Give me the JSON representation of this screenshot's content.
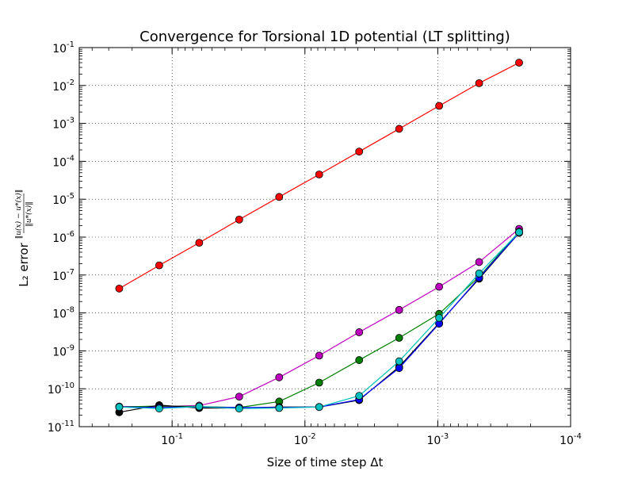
{
  "chart_data": {
    "type": "line",
    "title": "Convergence for Torsional 1D potential (LT splitting)",
    "xlabel": "Size of time step Δt",
    "ylabel_main": "L₂ error",
    "ylabel_numerator": "‖u(x) − u*(x)‖",
    "ylabel_denominator": "‖u*(x)‖",
    "x_scale": "log",
    "y_scale": "log",
    "x_reversed": true,
    "xlim": [
      0.5,
      0.0001
    ],
    "ylim": [
      1e-11,
      0.1
    ],
    "grid": true,
    "x_ticks": [
      {
        "base": "10",
        "exp": "-1"
      },
      {
        "base": "10",
        "exp": "-2"
      },
      {
        "base": "10",
        "exp": "-3"
      },
      {
        "base": "10",
        "exp": "-4"
      }
    ],
    "y_ticks": [
      {
        "base": "10",
        "exp": "-11"
      },
      {
        "base": "10",
        "exp": "-10"
      },
      {
        "base": "10",
        "exp": "-9"
      },
      {
        "base": "10",
        "exp": "-8"
      },
      {
        "base": "10",
        "exp": "-7"
      },
      {
        "base": "10",
        "exp": "-6"
      },
      {
        "base": "10",
        "exp": "-5"
      },
      {
        "base": "10",
        "exp": "-4"
      },
      {
        "base": "10",
        "exp": "-3"
      },
      {
        "base": "10",
        "exp": "-2"
      },
      {
        "base": "10",
        "exp": "-1"
      }
    ],
    "x": [
      0.25,
      0.125,
      0.0625,
      0.03125,
      0.015625,
      0.0078125,
      0.00390625,
      0.001953125,
      0.0009765625,
      0.00048828125,
      0.000244140625
    ],
    "series": [
      {
        "color": "#ff0000",
        "values": [
          4.4e-08,
          1.8e-07,
          7.1e-07,
          2.9e-06,
          1.15e-05,
          4.5e-05,
          0.00018,
          0.00072,
          0.0029,
          0.0115,
          0.04
        ]
      },
      {
        "color": "#bf00bf",
        "values": [
          3.4e-11,
          3.4e-11,
          3.6e-11,
          6.2e-11,
          2e-10,
          7.5e-10,
          3.1e-09,
          1.2e-08,
          4.9e-08,
          2.2e-07,
          1.65e-06
        ]
      },
      {
        "color": "#008000",
        "values": [
          3.3e-11,
          3.5e-11,
          3.4e-11,
          3.2e-11,
          4.6e-11,
          1.45e-10,
          5.7e-10,
          2.2e-09,
          9.5e-09,
          9e-08,
          1.4e-06
        ]
      },
      {
        "color": "#000000",
        "values": [
          2.4e-11,
          3.7e-11,
          3.1e-11,
          3.1e-11,
          3.3e-11,
          3.3e-11,
          5e-11,
          3.8e-10,
          5.4e-09,
          8e-08,
          1.3e-06
        ]
      },
      {
        "color": "#0000ff",
        "values": [
          3.3e-11,
          3.2e-11,
          3.3e-11,
          3.2e-11,
          3.2e-11,
          3.3e-11,
          5.2e-11,
          3.5e-10,
          5.2e-09,
          8.5e-08,
          1.3e-06
        ]
      },
      {
        "color": "#00bfbf",
        "values": [
          3.3e-11,
          3e-11,
          3.4e-11,
          3e-11,
          3.1e-11,
          3.3e-11,
          6.5e-11,
          5.3e-10,
          7.4e-09,
          1.1e-07,
          1.35e-06
        ]
      }
    ]
  }
}
